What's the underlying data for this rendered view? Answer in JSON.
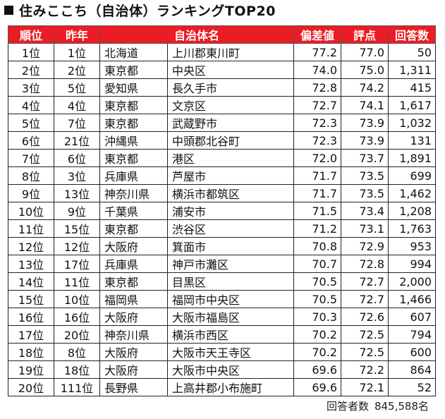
{
  "title": "住みここち（自治体）ランキングTOP20",
  "colors": {
    "header_bg": "#ec1c24",
    "header_text": "#ffffff"
  },
  "headers": {
    "rank": "順位",
    "prev": "昨年",
    "municipality": "自治体名",
    "deviation": "偏差値",
    "score": "評点",
    "responses": "回答数"
  },
  "rows": [
    {
      "rank": "1位",
      "prev": "1位",
      "pref": "北海道",
      "city": "上川郡東川町",
      "dev": "77.2",
      "score": "77.0",
      "n": "50"
    },
    {
      "rank": "2位",
      "prev": "2位",
      "pref": "東京都",
      "city": "中央区",
      "dev": "74.0",
      "score": "75.0",
      "n": "1,311"
    },
    {
      "rank": "3位",
      "prev": "5位",
      "pref": "愛知県",
      "city": "長久手市",
      "dev": "72.8",
      "score": "74.2",
      "n": "415"
    },
    {
      "rank": "4位",
      "prev": "4位",
      "pref": "東京都",
      "city": "文京区",
      "dev": "72.7",
      "score": "74.1",
      "n": "1,617"
    },
    {
      "rank": "5位",
      "prev": "7位",
      "pref": "東京都",
      "city": "武蔵野市",
      "dev": "72.3",
      "score": "73.9",
      "n": "1,032"
    },
    {
      "rank": "6位",
      "prev": "21位",
      "pref": "沖縄県",
      "city": "中頭郡北谷町",
      "dev": "72.3",
      "score": "73.9",
      "n": "131"
    },
    {
      "rank": "7位",
      "prev": "6位",
      "pref": "東京都",
      "city": "港区",
      "dev": "72.0",
      "score": "73.7",
      "n": "1,891"
    },
    {
      "rank": "8位",
      "prev": "3位",
      "pref": "兵庫県",
      "city": "芦屋市",
      "dev": "71.7",
      "score": "73.5",
      "n": "699"
    },
    {
      "rank": "9位",
      "prev": "13位",
      "pref": "神奈川県",
      "city": "横浜市都筑区",
      "dev": "71.7",
      "score": "73.5",
      "n": "1,462"
    },
    {
      "rank": "10位",
      "prev": "9位",
      "pref": "千葉県",
      "city": "浦安市",
      "dev": "71.5",
      "score": "73.4",
      "n": "1,208"
    },
    {
      "rank": "11位",
      "prev": "15位",
      "pref": "東京都",
      "city": "渋谷区",
      "dev": "71.2",
      "score": "73.1",
      "n": "1,763"
    },
    {
      "rank": "12位",
      "prev": "12位",
      "pref": "大阪府",
      "city": "箕面市",
      "dev": "70.8",
      "score": "72.9",
      "n": "953"
    },
    {
      "rank": "13位",
      "prev": "17位",
      "pref": "兵庫県",
      "city": "神戸市灘区",
      "dev": "70.7",
      "score": "72.8",
      "n": "994"
    },
    {
      "rank": "14位",
      "prev": "11位",
      "pref": "東京都",
      "city": "目黒区",
      "dev": "70.5",
      "score": "72.7",
      "n": "2,000"
    },
    {
      "rank": "15位",
      "prev": "10位",
      "pref": "福岡県",
      "city": "福岡市中央区",
      "dev": "70.5",
      "score": "72.7",
      "n": "1,466"
    },
    {
      "rank": "16位",
      "prev": "16位",
      "pref": "大阪府",
      "city": "大阪市福島区",
      "dev": "70.3",
      "score": "72.6",
      "n": "607"
    },
    {
      "rank": "17位",
      "prev": "20位",
      "pref": "神奈川県",
      "city": "横浜市西区",
      "dev": "70.2",
      "score": "72.5",
      "n": "794"
    },
    {
      "rank": "18位",
      "prev": "8位",
      "pref": "大阪府",
      "city": "大阪市天王寺区",
      "dev": "70.2",
      "score": "72.5",
      "n": "600"
    },
    {
      "rank": "19位",
      "prev": "18位",
      "pref": "大阪府",
      "city": "大阪市中央区",
      "dev": "69.6",
      "score": "72.2",
      "n": "864"
    },
    {
      "rank": "20位",
      "prev": "111位",
      "pref": "長野県",
      "city": "上高井郡小布施町",
      "dev": "69.6",
      "score": "72.1",
      "n": "52"
    }
  ],
  "footer": {
    "label": "回答者数",
    "value": "845,588名"
  }
}
